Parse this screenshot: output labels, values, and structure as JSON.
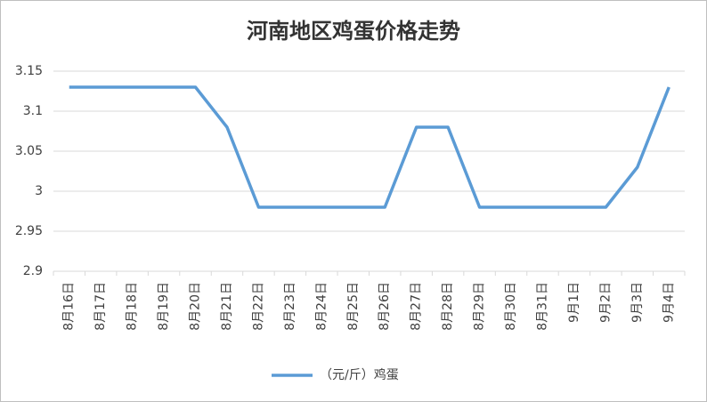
{
  "chart_data": {
    "type": "line",
    "title": "河南地区鸡蛋价格走势",
    "categories": [
      "8月16日",
      "8月17日",
      "8月18日",
      "8月19日",
      "8月20日",
      "8月21日",
      "8月22日",
      "8月23日",
      "8月24日",
      "8月25日",
      "8月26日",
      "8月27日",
      "8月28日",
      "8月29日",
      "8月30日",
      "8月31日",
      "9月1日",
      "9月2日",
      "9月3日",
      "9月4日"
    ],
    "series": [
      {
        "name": "（元/斤）鸡蛋",
        "color": "#5b9bd5",
        "values": [
          3.13,
          3.13,
          3.13,
          3.13,
          3.13,
          3.08,
          2.98,
          2.98,
          2.98,
          2.98,
          2.98,
          3.08,
          3.08,
          2.98,
          2.98,
          2.98,
          2.98,
          2.98,
          3.03,
          3.13
        ]
      }
    ],
    "ylim": [
      2.9,
      3.15
    ],
    "yticks": [
      2.9,
      2.95,
      3,
      3.05,
      3.1,
      3.15
    ],
    "grid": true,
    "legend": "bottom"
  }
}
